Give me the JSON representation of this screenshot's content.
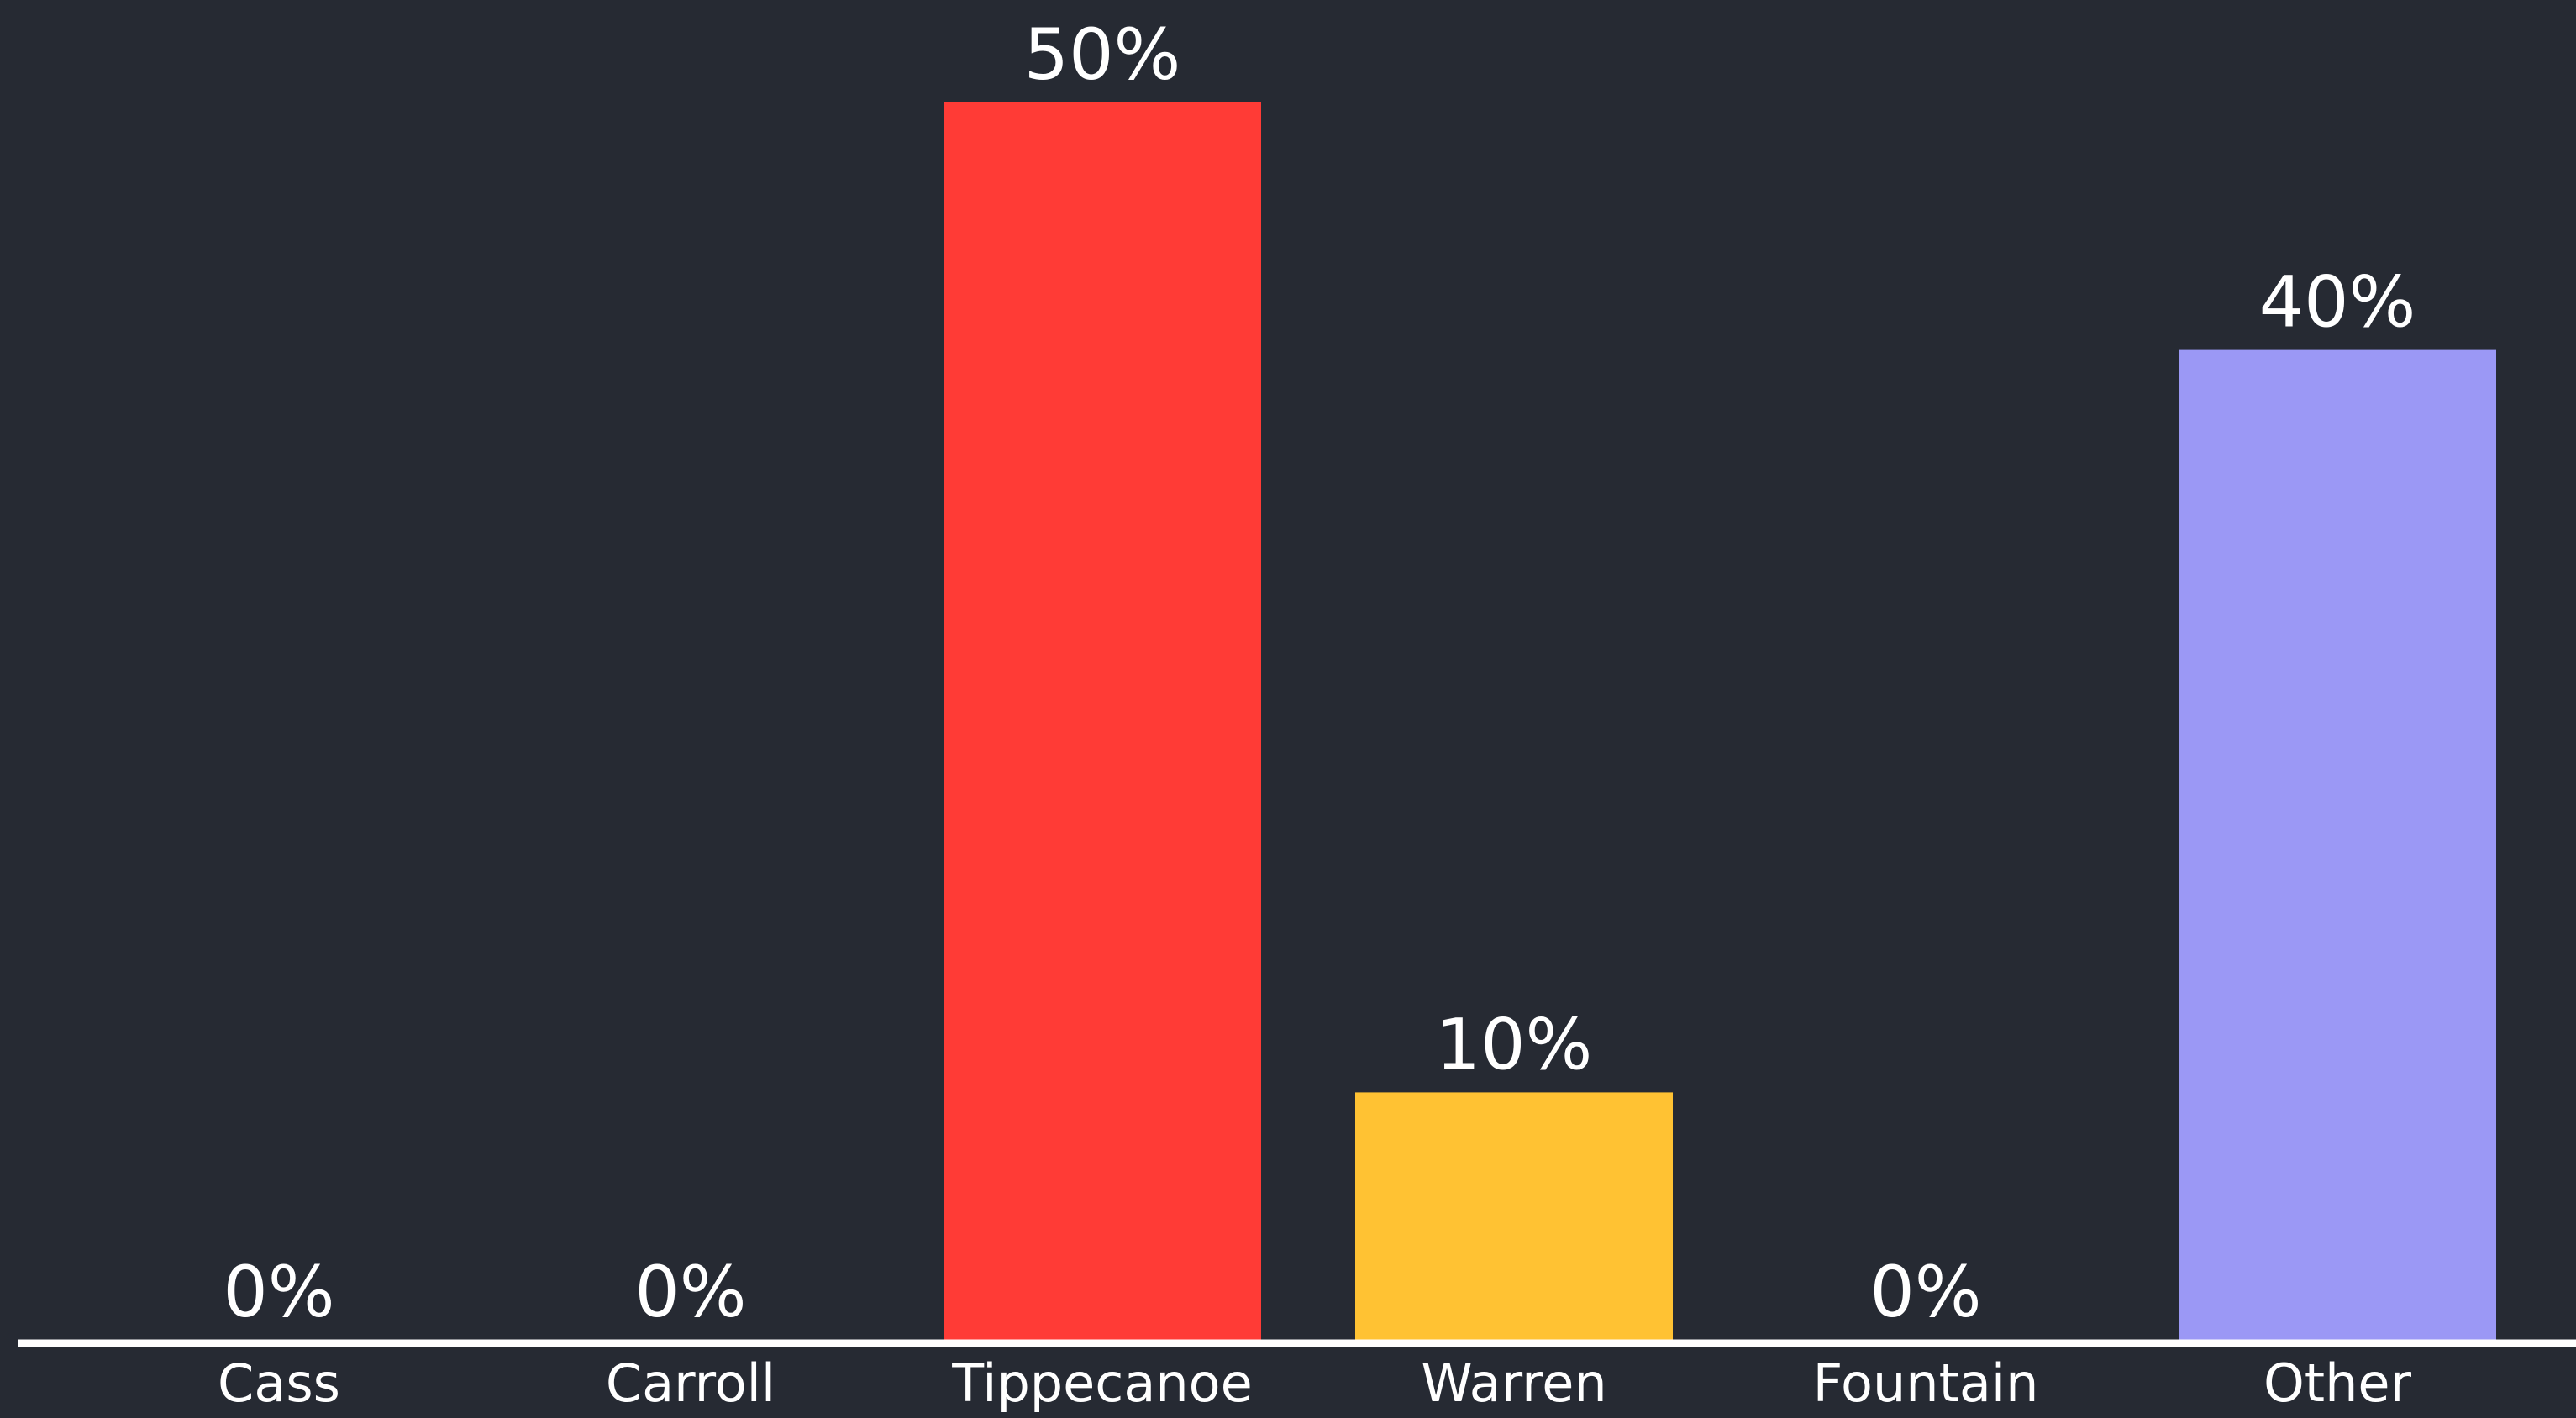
{
  "chart_data": {
    "type": "bar",
    "categories": [
      "Cass",
      "Carroll",
      "Tippecanoe",
      "Warren",
      "Fountain",
      "Other"
    ],
    "values": [
      0,
      0,
      50,
      10,
      0,
      40
    ],
    "value_labels": [
      "0%",
      "0%",
      "50%",
      "10%",
      "0%",
      "40%"
    ],
    "colors": [
      "#ff3b36",
      "#ff3b36",
      "#ff3b36",
      "#ffc233",
      "#ff3b36",
      "#9b98f5"
    ],
    "ylim": [
      0,
      50
    ],
    "grid": false,
    "legend": "none"
  },
  "colors": {
    "background": "#262a33",
    "axis": "#ffffff",
    "text": "#ffffff"
  }
}
